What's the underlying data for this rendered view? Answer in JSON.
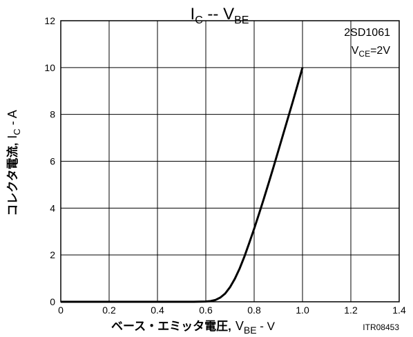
{
  "chart_data": {
    "type": "line",
    "title": {
      "main": "I",
      "main_sub": "C",
      "sep": " -- ",
      "var": "V",
      "var_sub": "BE"
    },
    "xlabel": {
      "jp": "ベース・エミッタ電圧,",
      "var": "V",
      "var_sub": "BE",
      "unit": " - V"
    },
    "ylabel": {
      "jp": "コレクタ電流,",
      "var": "I",
      "var_sub": "C",
      "unit": " - A"
    },
    "xlim": [
      0,
      1.4
    ],
    "ylim": [
      0,
      12
    ],
    "x_ticks": [
      "0",
      "0.2",
      "0.4",
      "0.6",
      "0.8",
      "1.0",
      "1.2",
      "1.4"
    ],
    "y_ticks": [
      "0",
      "2",
      "4",
      "6",
      "8",
      "10",
      "12"
    ],
    "x_tick_values": [
      0,
      0.2,
      0.4,
      0.6,
      0.8,
      1.0,
      1.2,
      1.4
    ],
    "y_tick_values": [
      0,
      2,
      4,
      6,
      8,
      10,
      12
    ],
    "grid": true,
    "annotation": {
      "part": "2SD1061",
      "cond_var": "V",
      "cond_sub": "CE",
      "cond_val": "=2V"
    },
    "figure_code": "ITR08453",
    "series": [
      {
        "x": [
          0,
          0.1,
          0.2,
          0.3,
          0.4,
          0.5,
          0.55,
          0.6,
          0.62,
          0.64,
          0.66,
          0.68,
          0.7,
          0.72,
          0.74,
          0.76,
          0.78,
          0.8,
          0.82,
          0.84,
          0.86,
          0.88,
          0.9,
          0.92,
          0.94,
          0.96,
          0.98,
          1.0
        ],
        "y": [
          0,
          0,
          0,
          0,
          0,
          0,
          0,
          0.01,
          0.03,
          0.08,
          0.18,
          0.35,
          0.62,
          0.98,
          1.42,
          1.94,
          2.52,
          3.12,
          3.75,
          4.4,
          5.07,
          5.75,
          6.45,
          7.15,
          7.85,
          8.55,
          9.27,
          10.0
        ]
      }
    ]
  }
}
